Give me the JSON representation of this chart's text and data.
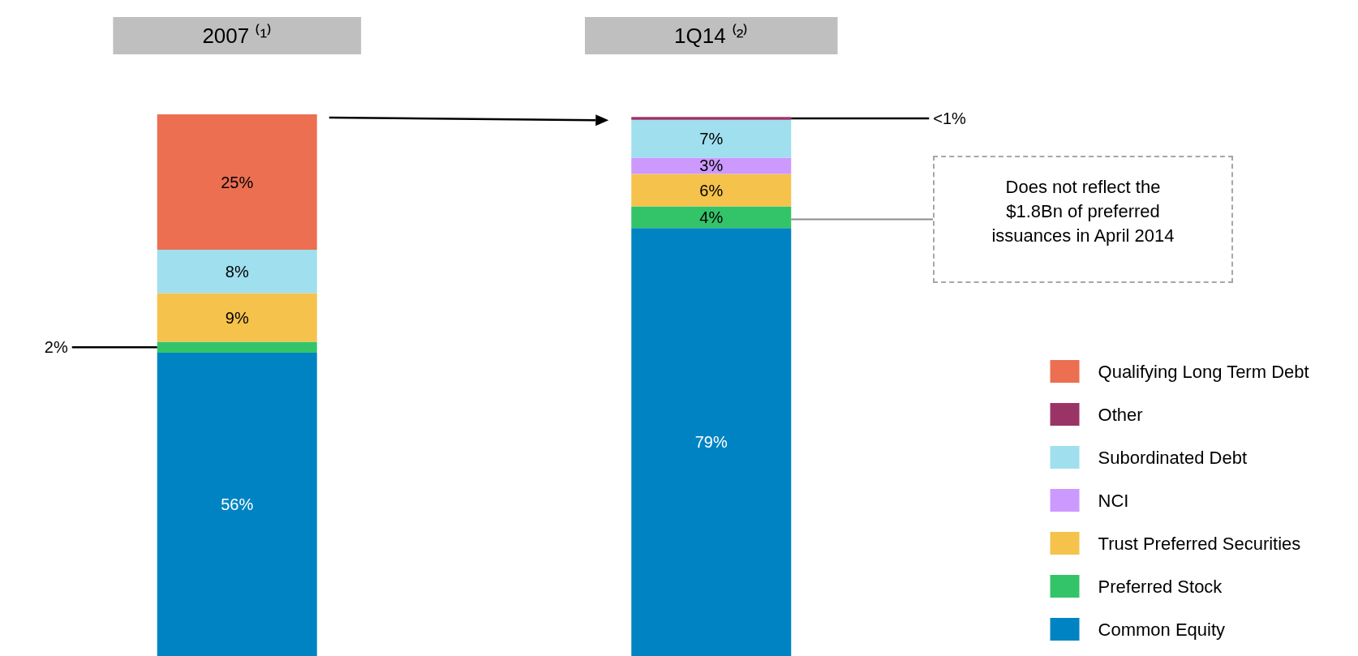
{
  "chart_data": {
    "type": "bar",
    "stacked": true,
    "legend": "bottom right",
    "ylim": [
      0,
      100
    ],
    "tick_labels": "x",
    "categories": [
      "2007 ⁽¹⁾",
      "1Q14 ⁽²⁾"
    ],
    "series": [
      {
        "name": "Common Equity",
        "color": "#0083c3",
        "values": [
          56,
          79
        ],
        "value_labels": [
          "56%",
          "79%"
        ]
      },
      {
        "name": "Preferred Stock",
        "color": "#33c46a",
        "values": [
          2,
          4
        ],
        "value_labels": [
          "2%",
          "4%"
        ]
      },
      {
        "name": "Trust Preferred Securities",
        "color": "#f5c24c",
        "values": [
          9,
          6
        ],
        "value_labels": [
          "9%",
          "6%"
        ]
      },
      {
        "name": "NCI",
        "color": "#cc99ff",
        "values": [
          null,
          3
        ],
        "value_labels": [
          null,
          "3%"
        ]
      },
      {
        "name": "Subordinated Debt",
        "color": "#9fdfee",
        "values": [
          8,
          7
        ],
        "value_labels": [
          "8%",
          "7%"
        ]
      },
      {
        "name": "Other",
        "color": "#9b3466",
        "values": [
          null,
          0.5
        ],
        "value_labels": [
          null,
          "<1%"
        ]
      },
      {
        "name": "Qualifying Long Term Debt",
        "color": "#ec6f52",
        "values": [
          25,
          null
        ],
        "value_labels": [
          "25%",
          null
        ]
      }
    ],
    "annotations": [
      "Does not reflect the $1.8Bn of preferred issuances in April 2014"
    ]
  }
}
